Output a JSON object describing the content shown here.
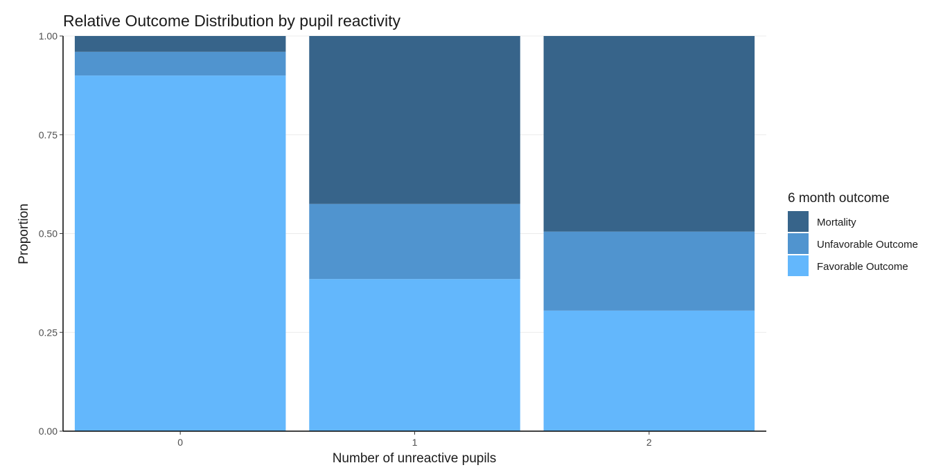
{
  "chart_data": {
    "type": "bar",
    "stacked": true,
    "title": "Relative Outcome Distribution by pupil reactivity",
    "xlabel": "Number of unreactive pupils",
    "ylabel": "Proportion",
    "categories": [
      "0",
      "1",
      "2"
    ],
    "ylim": [
      0,
      1
    ],
    "yticks": [
      "0.00",
      "0.25",
      "0.50",
      "0.75",
      "1.00"
    ],
    "grid": true,
    "legend": {
      "title": "6 month outcome",
      "position": "right"
    },
    "series": [
      {
        "name": "Favorable Outcome",
        "color": "#63b7fc",
        "values": [
          0.9,
          0.385,
          0.305
        ]
      },
      {
        "name": "Unfavorable Outcome",
        "color": "#5094cf",
        "values": [
          0.06,
          0.19,
          0.2
        ]
      },
      {
        "name": "Mortality",
        "color": "#37648a",
        "values": [
          0.04,
          0.425,
          0.495
        ]
      }
    ],
    "legend_order": [
      "Mortality",
      "Unfavorable Outcome",
      "Favorable Outcome"
    ]
  }
}
